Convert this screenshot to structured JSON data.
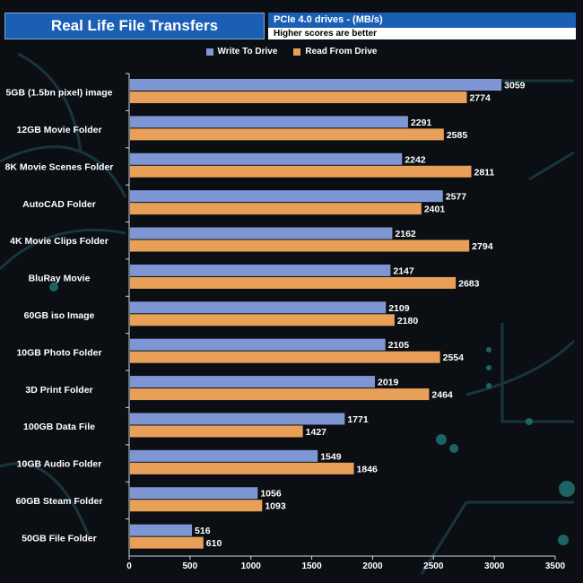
{
  "header": {
    "title": "Real Life File Transfers",
    "subtitle": "PCIe 4.0 drives - (MB/s)",
    "note": "Higher scores are better"
  },
  "colors": {
    "write": "#7f96d4",
    "read": "#e8a058",
    "label": "#ffffff",
    "axis": "#cfd8dc"
  },
  "chart_data": {
    "type": "bar",
    "orientation": "horizontal",
    "categories": [
      "5GB (1.5bn pixel) image",
      "12GB Movie Folder",
      "8K Movie Scenes Folder",
      "AutoCAD Folder",
      "4K Movie Clips Folder",
      "BluRay Movie",
      "60GB iso Image",
      "10GB Photo Folder",
      "3D Print Folder",
      "100GB Data File",
      "10GB Audio Folder",
      "60GB Steam Folder",
      "50GB File Folder"
    ],
    "series": [
      {
        "name": "Write To  Drive",
        "values": [
          3059,
          2291,
          2242,
          2577,
          2162,
          2147,
          2109,
          2105,
          2019,
          1771,
          1549,
          1056,
          516
        ]
      },
      {
        "name": "Read From  Drive",
        "values": [
          2774,
          2585,
          2811,
          2401,
          2794,
          2683,
          2180,
          2554,
          2464,
          1427,
          1846,
          1093,
          610
        ]
      }
    ],
    "xticks": [
      "0",
      "500",
      "1000",
      "1500",
      "2000",
      "2500",
      "3000",
      "3500"
    ],
    "xlim": [
      0,
      3500
    ],
    "title": "Real Life File Transfers",
    "xlabel": "",
    "ylabel": "",
    "legend": "top-center"
  }
}
